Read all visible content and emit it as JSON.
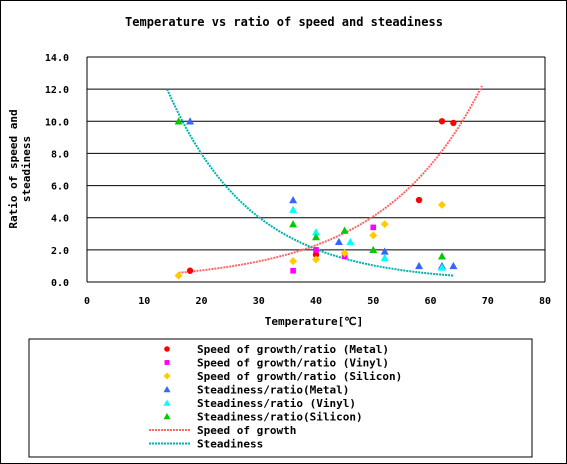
{
  "chart_data": {
    "type": "scatter",
    "title": "Temperature vs ratio of speed and steadiness",
    "xlabel": "Temperature[℃]",
    "ylabel_lines": [
      "Ratio of speed and",
      "steadiness"
    ],
    "xlim": [
      0,
      80
    ],
    "ylim": [
      0,
      14
    ],
    "x_ticks": [
      "0",
      "10",
      "20",
      "30",
      "40",
      "50",
      "60",
      "70",
      "80"
    ],
    "y_ticks": [
      "0.0",
      "2.0",
      "4.0",
      "6.0",
      "8.0",
      "10.0",
      "12.0",
      "14.0"
    ],
    "grid": "horizontal",
    "plot_background": "#ffffff",
    "legend_position": "bottom",
    "series": [
      {
        "name": "Speed of growth/ratio (Metal)",
        "marker": "circle",
        "color": "#ff0000",
        "points": [
          [
            18,
            0.7
          ],
          [
            40,
            1.7
          ],
          [
            58,
            5.1
          ],
          [
            62,
            10.0
          ],
          [
            64,
            9.9
          ]
        ]
      },
      {
        "name": "Speed of growth/ratio   (Vinyl)",
        "marker": "square",
        "color": "#ff00ff",
        "points": [
          [
            36,
            0.7
          ],
          [
            40,
            2.0
          ],
          [
            45,
            1.6
          ],
          [
            50,
            3.4
          ]
        ]
      },
      {
        "name": "Speed of growth/ratio (Silicon)",
        "marker": "diamond",
        "color": "#ffcc00",
        "points": [
          [
            16,
            0.4
          ],
          [
            36,
            1.3
          ],
          [
            40,
            1.4
          ],
          [
            45,
            1.8
          ],
          [
            50,
            2.9
          ],
          [
            52,
            3.6
          ],
          [
            62,
            4.8
          ]
        ]
      },
      {
        "name": "Steadiness/ratio(Metal)",
        "marker": "triangle",
        "color": "#3366ff",
        "points": [
          [
            18,
            10.0
          ],
          [
            36,
            5.1
          ],
          [
            44,
            2.5
          ],
          [
            52,
            1.9
          ],
          [
            58,
            1.0
          ],
          [
            62,
            1.0
          ],
          [
            64,
            1.0
          ]
        ]
      },
      {
        "name": "Steadiness/ratio (Vinyl)",
        "marker": "triangle",
        "color": "#00ffff",
        "points": [
          [
            36,
            4.5
          ],
          [
            40,
            3.1
          ],
          [
            46,
            2.5
          ],
          [
            52,
            1.5
          ],
          [
            62,
            0.9
          ]
        ]
      },
      {
        "name": "Steadiness/ratio(Silicon)",
        "marker": "triangle",
        "color": "#00cc00",
        "points": [
          [
            16,
            10.0
          ],
          [
            36,
            3.6
          ],
          [
            40,
            2.8
          ],
          [
            45,
            3.2
          ],
          [
            50,
            2.0
          ],
          [
            62,
            1.6
          ]
        ]
      }
    ],
    "trendlines": [
      {
        "name": "Speed of growth",
        "type": "exponential",
        "color": "#ff6666",
        "x_range": [
          16,
          69
        ],
        "a": 0.2278,
        "b": 0.0577
      },
      {
        "name": "Steadiness",
        "type": "exponential",
        "color": "#00b0b0",
        "x_range": [
          14,
          64
        ],
        "a": 31.13,
        "b": -0.0681
      }
    ]
  }
}
